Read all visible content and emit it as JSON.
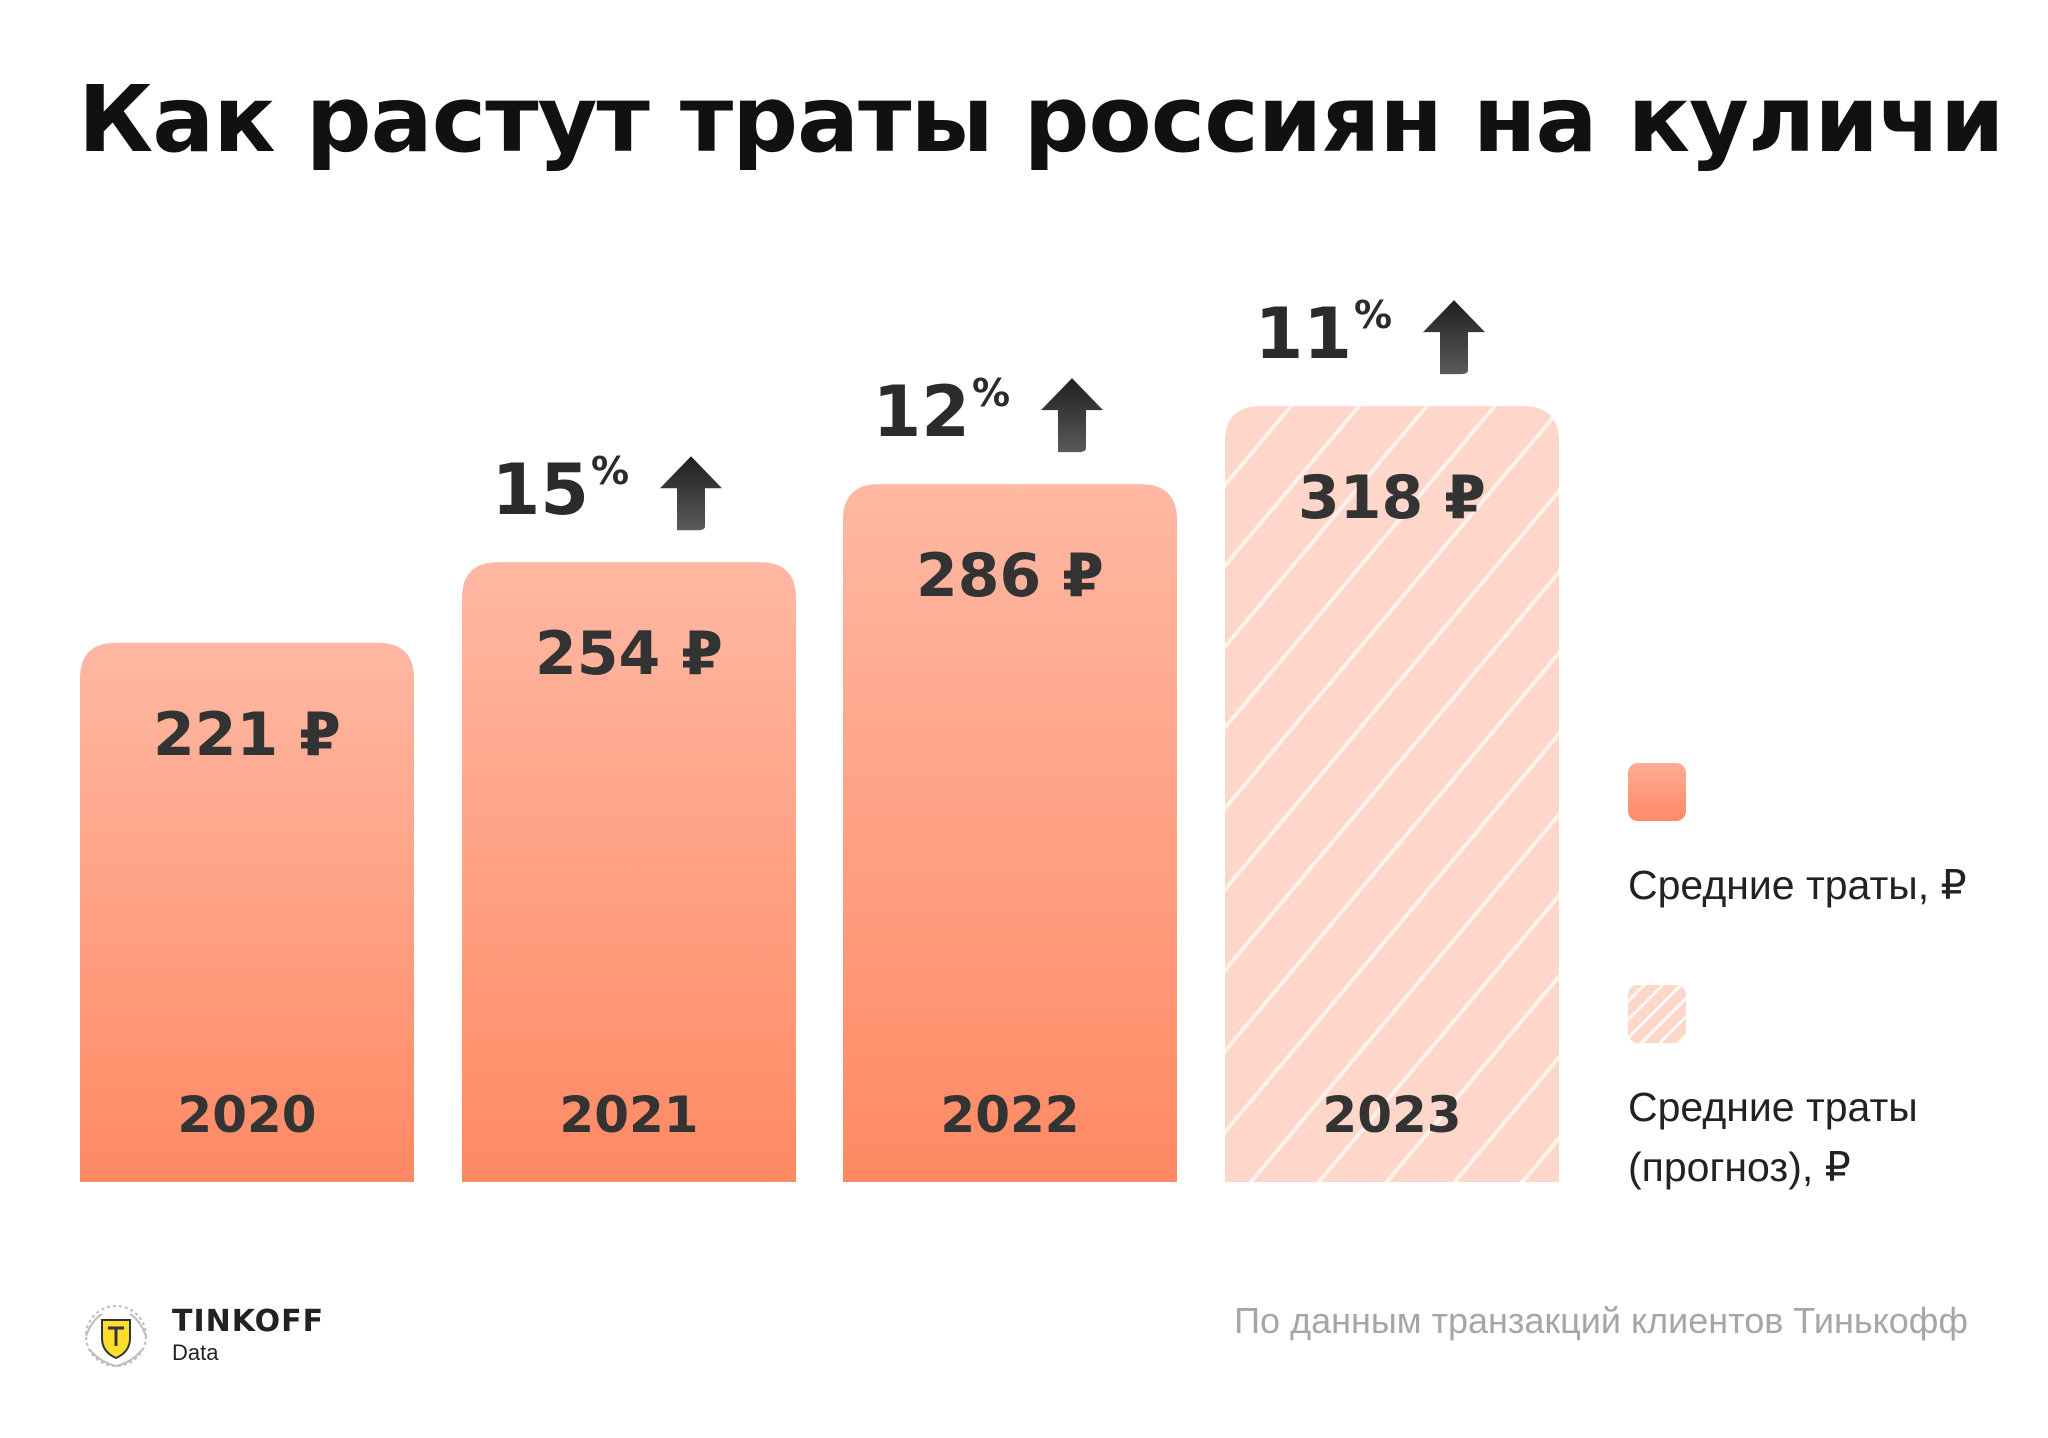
{
  "title": "Как растут траты россиян на куличи",
  "chart_data": {
    "type": "bar",
    "categories": [
      "2020",
      "2021",
      "2022",
      "2023"
    ],
    "values": [
      221,
      254,
      286,
      318
    ],
    "value_labels": [
      "221 ₽",
      "254 ₽",
      "286 ₽",
      "318 ₽"
    ],
    "forecast": [
      false,
      false,
      false,
      true
    ],
    "growth": [
      {
        "category": "2021",
        "value": 15,
        "label": "15",
        "unit": "%"
      },
      {
        "category": "2022",
        "value": 12,
        "label": "12",
        "unit": "%"
      },
      {
        "category": "2023",
        "value": 11,
        "label": "11",
        "unit": "%"
      }
    ],
    "legend": [
      {
        "key": "actual",
        "label": "Средние траты, ₽"
      },
      {
        "key": "forecast",
        "label": "Средние траты (прогноз), ₽"
      }
    ],
    "legend_position": "right",
    "grid": false,
    "colors": {
      "bar_top": "#ffb8a3",
      "bar_bottom": "#ff8963",
      "forecast_fill": "#ffd6ca",
      "text": "#333333"
    }
  },
  "footer": {
    "brand": "TINKOFF",
    "brand_sub": "Data",
    "logo_icon": "tinkoff-shield-emblem",
    "source": "По данным транзакций клиентов Тинькофф"
  }
}
